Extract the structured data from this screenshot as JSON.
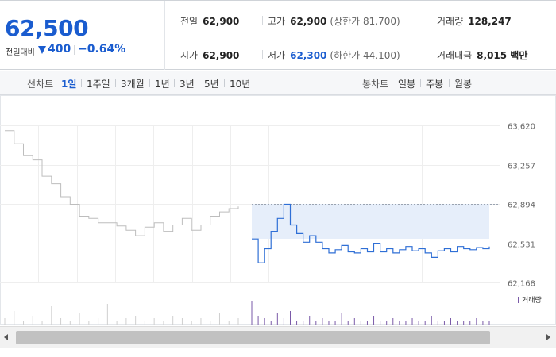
{
  "quote": {
    "price": "62,500",
    "change_label": "전일대비",
    "change_amount": "400",
    "change_rate": "−0.64%",
    "down_color": "#1a5ccf",
    "stats": {
      "prev_close": {
        "label": "전일",
        "value": "62,900"
      },
      "high": {
        "label": "고가",
        "value": "62,900",
        "sub": "(상한가 81,700)"
      },
      "volume": {
        "label": "거래량",
        "value": "128,247"
      },
      "open": {
        "label": "시가",
        "value": "62,900"
      },
      "low": {
        "label": "저가",
        "value": "62,300",
        "sub": "(하한가 44,100)"
      },
      "amount": {
        "label": "거래대금",
        "value": "8,015 백만"
      }
    }
  },
  "period_bar": {
    "line_chart_label": "선차트",
    "line_periods": [
      "1일",
      "1주일",
      "3개월",
      "1년",
      "3년",
      "5년",
      "10년"
    ],
    "active_period": "1일",
    "candle_chart_label": "봉차트",
    "candle_periods": [
      "일봉",
      "주봉",
      "월봉"
    ]
  },
  "chart_data": {
    "type": "line",
    "y_ticks": [
      "63,620",
      "63,257",
      "62,894",
      "62,531",
      "62,168"
    ],
    "ylim": [
      62168,
      63620
    ],
    "prev_close_line": 62894,
    "prev_day_color": "#bdbdbd",
    "today_color": "#2f6fd6",
    "today_fill": "#e6eefa",
    "prev_day_series": [
      63570,
      63450,
      63340,
      63300,
      63150,
      63080,
      62960,
      62890,
      62780,
      62760,
      62720,
      62720,
      62690,
      62650,
      62600,
      62680,
      62720,
      62640,
      62700,
      62760,
      62650,
      62700,
      62780,
      62820,
      62850,
      62870
    ],
    "today_series": [
      62570,
      62350,
      62480,
      62640,
      62760,
      62890,
      62700,
      62620,
      62540,
      62600,
      62540,
      62480,
      62440,
      62470,
      62510,
      62450,
      62440,
      62480,
      62450,
      62530,
      62450,
      62480,
      62440,
      62470,
      62500,
      62460,
      62480,
      62440,
      62400,
      62460,
      62480,
      62450,
      62500,
      62480,
      62470,
      62490,
      62480,
      62500
    ],
    "volume_legend": "거래량",
    "volume_color": "#7a5aa8",
    "volume_prev": [
      3,
      6,
      2,
      4,
      2,
      8,
      3,
      2,
      5,
      2,
      3,
      9,
      2,
      3,
      4,
      2,
      3,
      2,
      4,
      3,
      2,
      3,
      2,
      5,
      2,
      3
    ],
    "volume_today": [
      10,
      4,
      3,
      2,
      5,
      3,
      6,
      2,
      2,
      4,
      2,
      3,
      2,
      2,
      5,
      2,
      3,
      2,
      2,
      4,
      2,
      2,
      3,
      2,
      2,
      3,
      2,
      2,
      4,
      2,
      2,
      3,
      2,
      2,
      2,
      3,
      2,
      2
    ]
  }
}
